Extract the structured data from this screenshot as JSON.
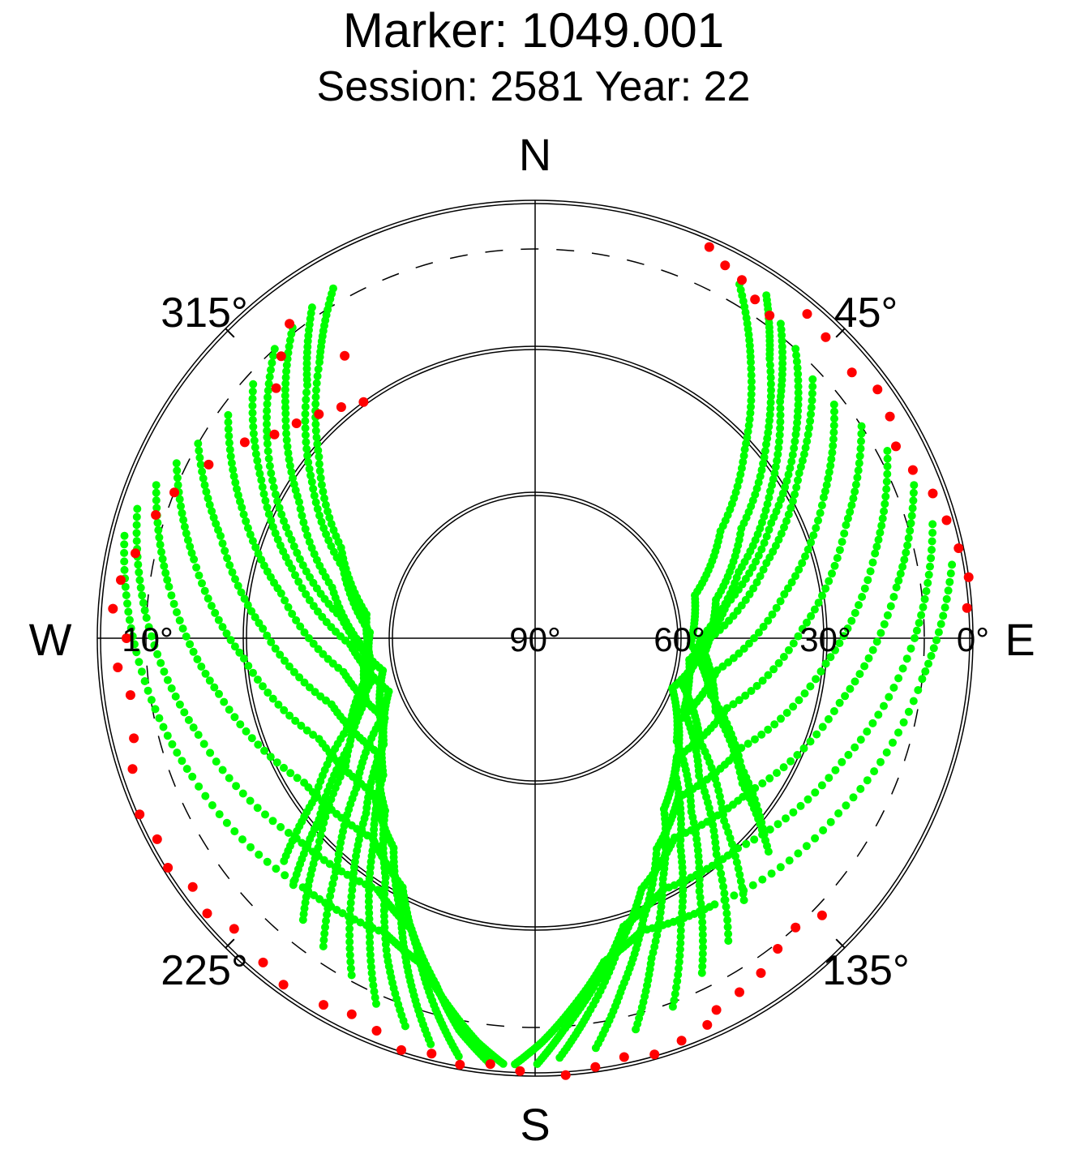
{
  "chart_data": {
    "type": "scatter",
    "projection": "polar-skyplot",
    "title": "Marker: 1049.001",
    "subtitle": "Session: 2581 Year: 22",
    "cardinal": {
      "north": "N",
      "south": "S",
      "east": "E",
      "west": "W"
    },
    "azimuth_labels": [
      "45°",
      "135°",
      "225°",
      "315°"
    ],
    "elevation_labels": [
      "0°",
      "30°",
      "60°",
      "90°",
      "10°"
    ],
    "elevation_circles_deg": [
      0,
      30,
      60
    ],
    "elevation_mask_deg": 10,
    "grid": true,
    "colors": {
      "tracked": "#00ff00",
      "flagged": "#ff0000",
      "grid": "#000000",
      "mask": "#000000"
    },
    "series": [
      {
        "color": "#00ff00",
        "tracks": [
          {
            "az": [
              34,
              40,
              50,
              62,
              78,
              95,
              112,
              125,
              133
            ],
            "el": [
              5,
              15,
              28,
              42,
              52,
              55,
              50,
              38,
              24
            ]
          },
          {
            "az": [
              30,
              38,
              48,
              60,
              75,
              92,
              108,
              122,
              132
            ],
            "el": [
              6,
              18,
              32,
              46,
              56,
              58,
              52,
              40,
              26
            ]
          },
          {
            "az": [
              38,
              46,
              58,
              72,
              90,
              108,
              122,
              134,
              142
            ],
            "el": [
              8,
              20,
              33,
              46,
              56,
              58,
              50,
              36,
              20
            ]
          },
          {
            "az": [
              42,
              52,
              64,
              80,
              98,
              116,
              130,
              140,
              148
            ],
            "el": [
              10,
              22,
              36,
              50,
              58,
              56,
              46,
              32,
              15
            ]
          },
          {
            "az": [
              47,
              58,
              72,
              90,
              110,
              126,
              138,
              147,
              154
            ],
            "el": [
              12,
              26,
              40,
              54,
              60,
              54,
              42,
              28,
              12
            ]
          },
          {
            "az": [
              52,
              64,
              80,
              100,
              120,
              134,
              145,
              153,
              160
            ],
            "el": [
              12,
              24,
              38,
              52,
              56,
              50,
              38,
              24,
              8
            ]
          },
          {
            "az": [
              57,
              70,
              88,
              110,
              130,
              143,
              152,
              160,
              166
            ],
            "el": [
              10,
              22,
              35,
              48,
              52,
              46,
              34,
              20,
              6
            ]
          },
          {
            "az": [
              62,
              76,
              95,
              118,
              138,
              150,
              159,
              166,
              172
            ],
            "el": [
              8,
              18,
              30,
              42,
              46,
              40,
              28,
              16,
              4
            ]
          },
          {
            "az": [
              68,
              82,
              102,
              126,
              145,
              157,
              165,
              172,
              177
            ],
            "el": [
              6,
              15,
              26,
              36,
              40,
              34,
              24,
              12,
              3
            ]
          },
          {
            "az": [
              74,
              90,
              112,
              136,
              153,
              163,
              170,
              176,
              180
            ],
            "el": [
              5,
              12,
              22,
              30,
              32,
              28,
              18,
              9,
              2
            ]
          },
          {
            "az": [
              80,
              96,
              120,
              146,
              160,
              168,
              174,
              179,
              183
            ],
            "el": [
              3,
              10,
              18,
              24,
              26,
              22,
              14,
              7,
              2
            ]
          },
          {
            "az": [
              326,
              318,
              305,
              290,
              272,
              255,
              240,
              230,
              224
            ],
            "el": [
              8,
              20,
              34,
              48,
              56,
              55,
              46,
              32,
              18
            ]
          },
          {
            "az": [
              330,
              322,
              310,
              295,
              278,
              260,
              245,
              234,
              228
            ],
            "el": [
              7,
              18,
              32,
              46,
              55,
              56,
              48,
              34,
              20
            ]
          },
          {
            "az": [
              322,
              312,
              300,
              284,
              266,
              250,
              236,
              226,
              219
            ],
            "el": [
              9,
              21,
              34,
              47,
              55,
              53,
              43,
              28,
              14
            ]
          },
          {
            "az": [
              318,
              306,
              292,
              276,
              258,
              242,
              230,
              221,
              214
            ],
            "el": [
              10,
              22,
              36,
              50,
              58,
              54,
              42,
              28,
              12
            ]
          },
          {
            "az": [
              312,
              300,
              286,
              268,
              250,
              235,
              224,
              216,
              208
            ],
            "el": [
              12,
              25,
              38,
              52,
              58,
              52,
              40,
              26,
              10
            ]
          },
          {
            "az": [
              306,
              294,
              280,
              260,
              242,
              228,
              218,
              210,
              203
            ],
            "el": [
              12,
              24,
              37,
              50,
              55,
              48,
              36,
              22,
              7
            ]
          },
          {
            "az": [
              300,
              288,
              272,
              252,
              234,
              221,
              212,
              205,
              198
            ],
            "el": [
              10,
              22,
              34,
              46,
              50,
              43,
              32,
              18,
              5
            ]
          },
          {
            "az": [
              296,
              283,
              266,
              245,
              226,
              214,
              206,
              200,
              194
            ],
            "el": [
              8,
              18,
              30,
              41,
              44,
              38,
              27,
              15,
              3
            ]
          },
          {
            "az": [
              292,
              278,
              260,
              238,
              219,
              208,
              201,
              195,
              190
            ],
            "el": [
              6,
              14,
              24,
              34,
              37,
              32,
              22,
              11,
              2
            ]
          },
          {
            "az": [
              288,
              273,
              254,
              230,
              212,
              203,
              196,
              191,
              186
            ],
            "el": [
              4,
              10,
              18,
              26,
              29,
              25,
              16,
              8,
              2
            ]
          },
          {
            "az": [
              284,
              268,
              248,
              223,
              207,
              199,
              193,
              188,
              184
            ],
            "el": [
              3,
              8,
              14,
              20,
              22,
              19,
              12,
              6,
              2
            ]
          }
        ]
      },
      {
        "color": "#ff0000",
        "points": [
          [
            24,
            2
          ],
          [
            27,
            4
          ],
          [
            30,
            5
          ],
          [
            33,
            7
          ],
          [
            36,
            8
          ],
          [
            40,
            3
          ],
          [
            44,
            4
          ],
          [
            50,
            5
          ],
          [
            54,
            3
          ],
          [
            58,
            4
          ],
          [
            62,
            6
          ],
          [
            66,
            5
          ],
          [
            70,
            3
          ],
          [
            74,
            2
          ],
          [
            78,
            1
          ],
          [
            82,
            0
          ],
          [
            86,
            1
          ],
          [
            134,
            8
          ],
          [
            138,
            10
          ],
          [
            142,
            9
          ],
          [
            146,
            7
          ],
          [
            150,
            6
          ],
          [
            154,
            5
          ],
          [
            156,
            3
          ],
          [
            160,
            2
          ],
          [
            164,
            1
          ],
          [
            168,
            2
          ],
          [
            172,
            1
          ],
          [
            176,
            0
          ],
          [
            182,
            1
          ],
          [
            186,
            2
          ],
          [
            190,
            1
          ],
          [
            194,
            2
          ],
          [
            198,
            1
          ],
          [
            202,
            3
          ],
          [
            206,
            4
          ],
          [
            210,
            3
          ],
          [
            216,
            2
          ],
          [
            220,
            3
          ],
          [
            226,
            4
          ],
          [
            230,
            2
          ],
          [
            234,
            3
          ],
          [
            238,
            1
          ],
          [
            242,
            2
          ],
          [
            246,
            1
          ],
          [
            252,
            3
          ],
          [
            256,
            5
          ],
          [
            262,
            6
          ],
          [
            266,
            4
          ],
          [
            270,
            6
          ],
          [
            274,
            3
          ],
          [
            278,
            4
          ],
          [
            282,
            6
          ],
          [
            288,
            8
          ],
          [
            292,
            10
          ],
          [
            298,
            14
          ],
          [
            304,
            18
          ],
          [
            308,
            22
          ],
          [
            312,
            24
          ],
          [
            316,
            26
          ],
          [
            320,
            28
          ],
          [
            324,
            30
          ],
          [
            318,
            12
          ],
          [
            322,
            8
          ],
          [
            314,
            16
          ],
          [
            326,
            20
          ]
        ]
      }
    ]
  }
}
